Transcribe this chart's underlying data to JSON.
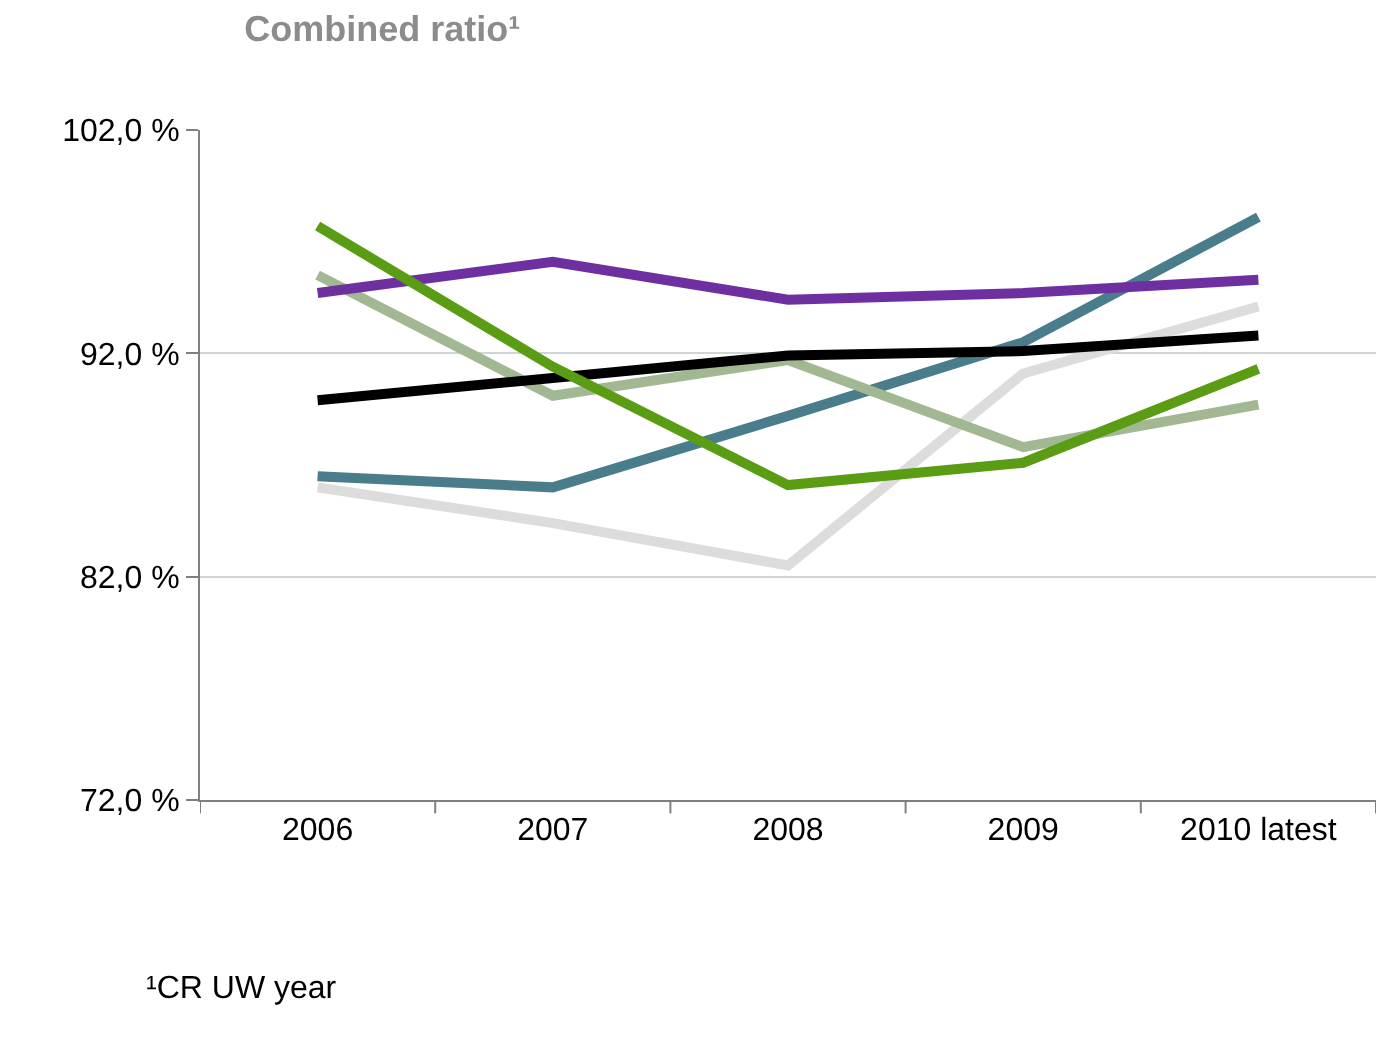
{
  "chart_data": {
    "type": "line",
    "title": "Combined ratio¹",
    "categories": [
      "2006",
      "2007",
      "2008",
      "2009",
      "2010 latest"
    ],
    "series": [
      {
        "color": "#dcdcdc",
        "values": [
          86.0,
          84.4,
          82.5,
          91.1,
          94.1
        ]
      },
      {
        "color": "#4a7d8c",
        "values": [
          86.5,
          86.0,
          89.2,
          92.5,
          98.1
        ]
      },
      {
        "color": "#a2b893",
        "values": [
          95.5,
          90.1,
          91.7,
          87.8,
          89.7
        ]
      },
      {
        "color": "#6e2fa0",
        "values": [
          94.7,
          96.1,
          94.4,
          94.7,
          95.3
        ]
      },
      {
        "color": "#000000",
        "values": [
          89.9,
          90.9,
          91.9,
          92.1,
          92.8
        ]
      },
      {
        "color": "#5a9c14",
        "values": [
          97.7,
          91.4,
          86.1,
          87.1,
          91.3
        ]
      }
    ],
    "ylim": [
      72,
      102
    ],
    "yticks": [
      {
        "value": 72,
        "label": "72,0 %"
      },
      {
        "value": 82,
        "label": "82,0 %"
      },
      {
        "value": 92,
        "label": "92,0 %"
      },
      {
        "value": 102,
        "label": "102,0 %"
      }
    ],
    "grid": "y",
    "marker": "none",
    "line_style": "solid",
    "annotations": [
      "¹CR UW year"
    ]
  }
}
